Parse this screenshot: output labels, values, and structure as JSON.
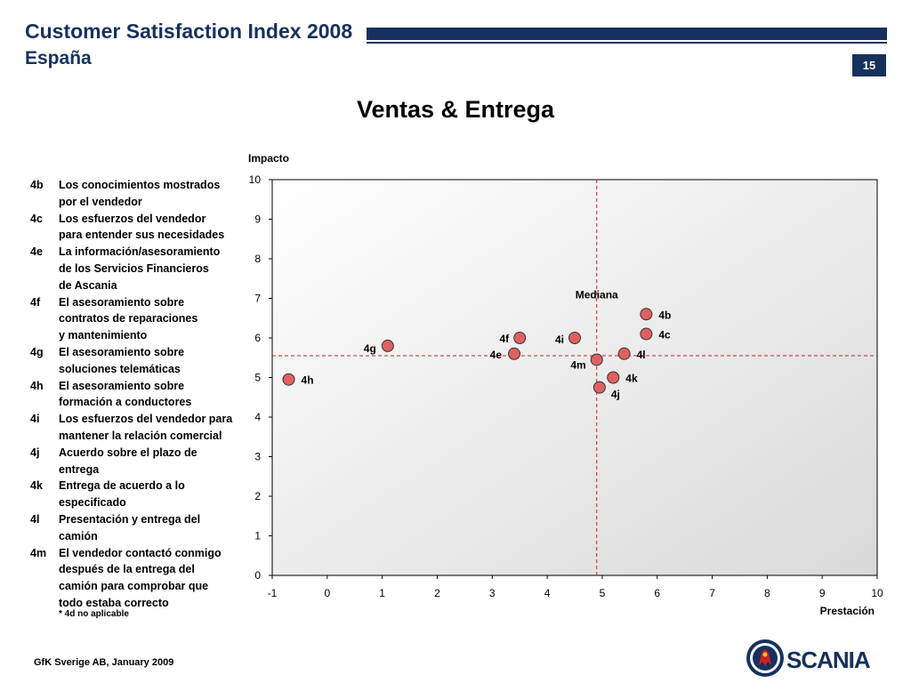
{
  "header": {
    "title": "Customer Satisfaction Index 2008",
    "subtitle": "España",
    "page_number": "15"
  },
  "main_title": "Ventas & Entrega",
  "legend": [
    {
      "code": "4b",
      "text": "Los conocimientos mostrados\npor el vendedor"
    },
    {
      "code": "4c",
      "text": "Los esfuerzos del vendedor\npara entender sus necesidades"
    },
    {
      "code": "4e",
      "text": "La información/asesoramiento\nde los Servicios Financieros\nde Ascania"
    },
    {
      "code": "4f",
      "text": "El asesoramiento sobre\ncontratos de reparaciones\ny mantenimiento"
    },
    {
      "code": "4g",
      "text": "El asesoramiento sobre\nsoluciones telemáticas"
    },
    {
      "code": "4h",
      "text": "El asesoramiento sobre\nformación a conductores"
    },
    {
      "code": "4i",
      "text": "Los esfuerzos del vendedor para\nmantener la relación comercial"
    },
    {
      "code": "4j",
      "text": "Acuerdo sobre el plazo de\nentrega"
    },
    {
      "code": "4k",
      "text": "Entrega de acuerdo a lo\nespecificado"
    },
    {
      "code": "4l",
      "text": "Presentación y entrega del\ncamión"
    },
    {
      "code": "4m",
      "text": "El vendedor contactó conmigo\ndespués de la entrega del\ncamión para comprobar que\ntodo estaba correcto"
    }
  ],
  "footnote": "* 4d no aplicable",
  "footer": "GfK Sverige AB, January 2009",
  "logo_text": "SCANIA",
  "colors": {
    "navy": "#16315e",
    "marker": "#e06060",
    "median": "#d02020"
  },
  "chart_data": {
    "type": "scatter",
    "xlabel": "Prestación",
    "ylabel": "Impacto",
    "xlim": [
      -1,
      10
    ],
    "ylim": [
      0,
      10
    ],
    "xticks": [
      -1,
      0,
      1,
      2,
      3,
      4,
      5,
      6,
      7,
      8,
      9,
      10
    ],
    "yticks": [
      0,
      1,
      2,
      3,
      4,
      5,
      6,
      7,
      8,
      9,
      10
    ],
    "median_label": "Mediana",
    "median_x": 4.9,
    "median_y": 5.55,
    "points": [
      {
        "label": "4b",
        "x": 5.8,
        "y": 6.6
      },
      {
        "label": "4c",
        "x": 5.8,
        "y": 6.1
      },
      {
        "label": "4e",
        "x": 3.4,
        "y": 5.6
      },
      {
        "label": "4f",
        "x": 3.5,
        "y": 6.0
      },
      {
        "label": "4g",
        "x": 1.1,
        "y": 5.8
      },
      {
        "label": "4h",
        "x": -0.7,
        "y": 4.95
      },
      {
        "label": "4i",
        "x": 4.5,
        "y": 6.0
      },
      {
        "label": "4j",
        "x": 4.95,
        "y": 4.75
      },
      {
        "label": "4k",
        "x": 5.2,
        "y": 5.0
      },
      {
        "label": "4l",
        "x": 5.4,
        "y": 5.6
      },
      {
        "label": "4m",
        "x": 4.9,
        "y": 5.45
      }
    ]
  }
}
